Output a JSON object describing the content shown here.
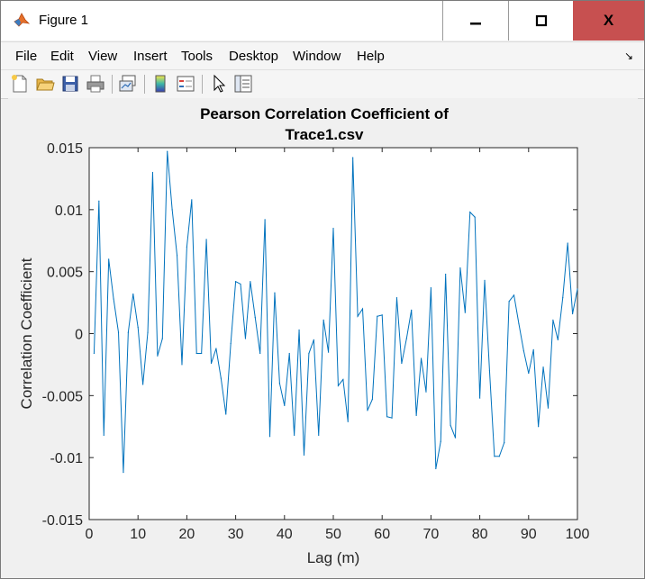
{
  "window": {
    "title": "Figure 1",
    "minimize_label": "—",
    "close_label": "X"
  },
  "menu": {
    "items": [
      "File",
      "Edit",
      "View",
      "Insert",
      "Tools",
      "Desktop",
      "Window",
      "Help"
    ]
  },
  "toolbar": {
    "icons": [
      "new-figure-icon",
      "open-file-icon",
      "save-icon",
      "print-icon",
      "link-plot-icon",
      "colorbar-icon",
      "legend-icon",
      "pointer-icon",
      "property-inspector-icon"
    ]
  },
  "colors": {
    "line": "#0072bd",
    "close_button": "#c75050"
  },
  "chart_data": {
    "type": "line",
    "title_line1": "Pearson Correlation Coefficient of",
    "title_line2": "Trace1.csv",
    "xlabel": "Lag (m)",
    "ylabel": "Correlation Coefficient",
    "xlim": [
      0,
      100
    ],
    "ylim": [
      -0.015,
      0.015
    ],
    "xticks": [
      0,
      10,
      20,
      30,
      40,
      50,
      60,
      70,
      80,
      90,
      100
    ],
    "yticks": [
      -0.015,
      -0.01,
      -0.005,
      0,
      0.005,
      0.01,
      0.015
    ],
    "ytick_labels": [
      "-0.015",
      "-0.01",
      "-0.005",
      "0",
      "0.005",
      "0.01",
      "0.015"
    ],
    "grid": false,
    "x": [
      1,
      2,
      3,
      4,
      5,
      6,
      7,
      8,
      9,
      10,
      11,
      12,
      13,
      14,
      15,
      16,
      17,
      18,
      19,
      20,
      21,
      22,
      23,
      24,
      25,
      26,
      27,
      28,
      29,
      30,
      31,
      32,
      33,
      34,
      35,
      36,
      37,
      38,
      39,
      40,
      41,
      42,
      43,
      44,
      45,
      46,
      47,
      48,
      49,
      50,
      51,
      52,
      53,
      54,
      55,
      56,
      57,
      58,
      59,
      60,
      61,
      62,
      63,
      64,
      65,
      66,
      67,
      68,
      69,
      70,
      71,
      72,
      73,
      74,
      75,
      76,
      77,
      78,
      79,
      80,
      81,
      82,
      83,
      84,
      85,
      86,
      87,
      88,
      89,
      90,
      91,
      92,
      93,
      94,
      95,
      96,
      97,
      98,
      99,
      100
    ],
    "y": [
      -0.0016,
      0.0107,
      -0.0082,
      0.006,
      0.0028,
      0.0001,
      -0.0112,
      0.0001,
      0.0032,
      0.0005,
      -0.0041,
      0.0001,
      0.013,
      -0.0018,
      -0.0004,
      0.0147,
      0.01,
      0.0063,
      -0.0025,
      0.007,
      0.0108,
      -0.0016,
      -0.0016,
      0.0076,
      -0.0024,
      -0.0012,
      -0.0036,
      -0.0065,
      -0.0008,
      0.0042,
      0.004,
      -0.0004,
      0.0042,
      0.0013,
      -0.0016,
      0.0092,
      -0.0083,
      0.0033,
      -0.004,
      -0.0058,
      -0.0016,
      -0.0082,
      0.0003,
      -0.0098,
      -0.0016,
      -0.0005,
      -0.0082,
      0.0011,
      -0.0015,
      0.0085,
      -0.0042,
      -0.0037,
      -0.0071,
      0.0142,
      0.0014,
      0.002,
      -0.0062,
      -0.0053,
      0.0014,
      0.0015,
      -0.0067,
      -0.0068,
      0.0029,
      -0.0024,
      -0.0004,
      0.0019,
      -0.0066,
      -0.002,
      -0.0047,
      0.0037,
      -0.0109,
      -0.0087,
      0.0048,
      -0.0074,
      -0.0084,
      0.0053,
      0.0017,
      0.0098,
      0.0094,
      -0.0052,
      0.0043,
      -0.003,
      -0.0099,
      -0.0099,
      -0.0088,
      0.0026,
      0.0031,
      0.0008,
      -0.0014,
      -0.0032,
      -0.0013,
      -0.0075,
      -0.0027,
      -0.006,
      0.0011,
      -0.0005,
      0.0029,
      0.0073,
      0.0016,
      0.0036
    ]
  }
}
